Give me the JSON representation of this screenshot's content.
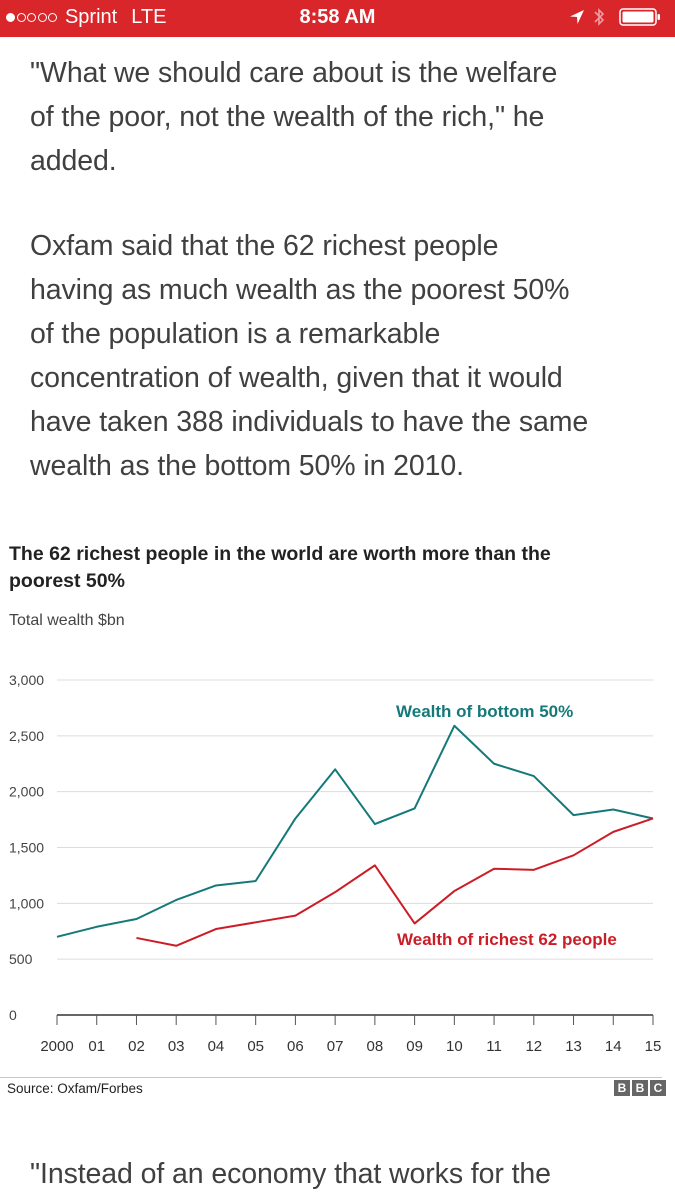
{
  "status_bar": {
    "carrier": "Sprint",
    "network": "LTE",
    "time": "8:58 AM",
    "signal_bars_filled": 1,
    "signal_bars_total": 5,
    "battery_level": 1.0,
    "background_color": "#d9262b"
  },
  "article": {
    "paragraph1_lines": [
      "\"What we should care about is the welfare",
      "of the poor, not the wealth of the rich,\" he",
      "added."
    ],
    "paragraph2_lines": [
      "Oxfam said that the 62 richest people",
      "having as much wealth as the poorest 50%",
      "of the population is a remarkable",
      "concentration of wealth, given that it would",
      "have taken 388 individuals to have the same",
      "wealth as the bottom 50% in 2010."
    ],
    "paragraph3_line": "\"Instead of an economy that works for the"
  },
  "chart_data": {
    "type": "line",
    "title_lines": [
      "The 62 richest people in the world are worth more than the",
      "poorest 50%"
    ],
    "subtitle": "Total wealth $bn",
    "x_tick_labels": [
      "2000",
      "01",
      "02",
      "03",
      "04",
      "05",
      "06",
      "07",
      "08",
      "09",
      "10",
      "11",
      "12",
      "13",
      "14",
      "15"
    ],
    "x": [
      2000,
      2001,
      2002,
      2003,
      2004,
      2005,
      2006,
      2007,
      2008,
      2009,
      2010,
      2011,
      2012,
      2013,
      2014,
      2015
    ],
    "y_ticks": [
      0,
      500,
      1000,
      1500,
      2000,
      2500,
      3000
    ],
    "y_tick_labels": [
      "0",
      "500",
      "1,000",
      "1,500",
      "2,000",
      "2,500",
      "3,000"
    ],
    "ylim": [
      0,
      3000
    ],
    "grid": true,
    "series": [
      {
        "name": "Wealth of bottom 50%",
        "color": "#15797a",
        "label_position": "top-center",
        "x": [
          2000,
          2001,
          2002,
          2003,
          2004,
          2005,
          2006,
          2007,
          2008,
          2009,
          2010,
          2011,
          2012,
          2013,
          2014,
          2015
        ],
        "values": [
          700,
          790,
          860,
          1030,
          1160,
          1200,
          1760,
          2200,
          1710,
          1850,
          2590,
          2250,
          2140,
          1790,
          1840,
          1760
        ]
      },
      {
        "name": "Wealth of richest 62 people",
        "color": "#cc1d27",
        "label_position": "bottom-right",
        "x": [
          2002,
          2003,
          2004,
          2005,
          2006,
          2007,
          2008,
          2009,
          2010,
          2011,
          2012,
          2013,
          2014,
          2015
        ],
        "values": [
          690,
          620,
          770,
          830,
          890,
          1100,
          1340,
          820,
          1110,
          1310,
          1300,
          1430,
          1640,
          1760
        ]
      }
    ],
    "source": "Source: Oxfam/Forbes",
    "logo": [
      "B",
      "B",
      "C"
    ]
  }
}
